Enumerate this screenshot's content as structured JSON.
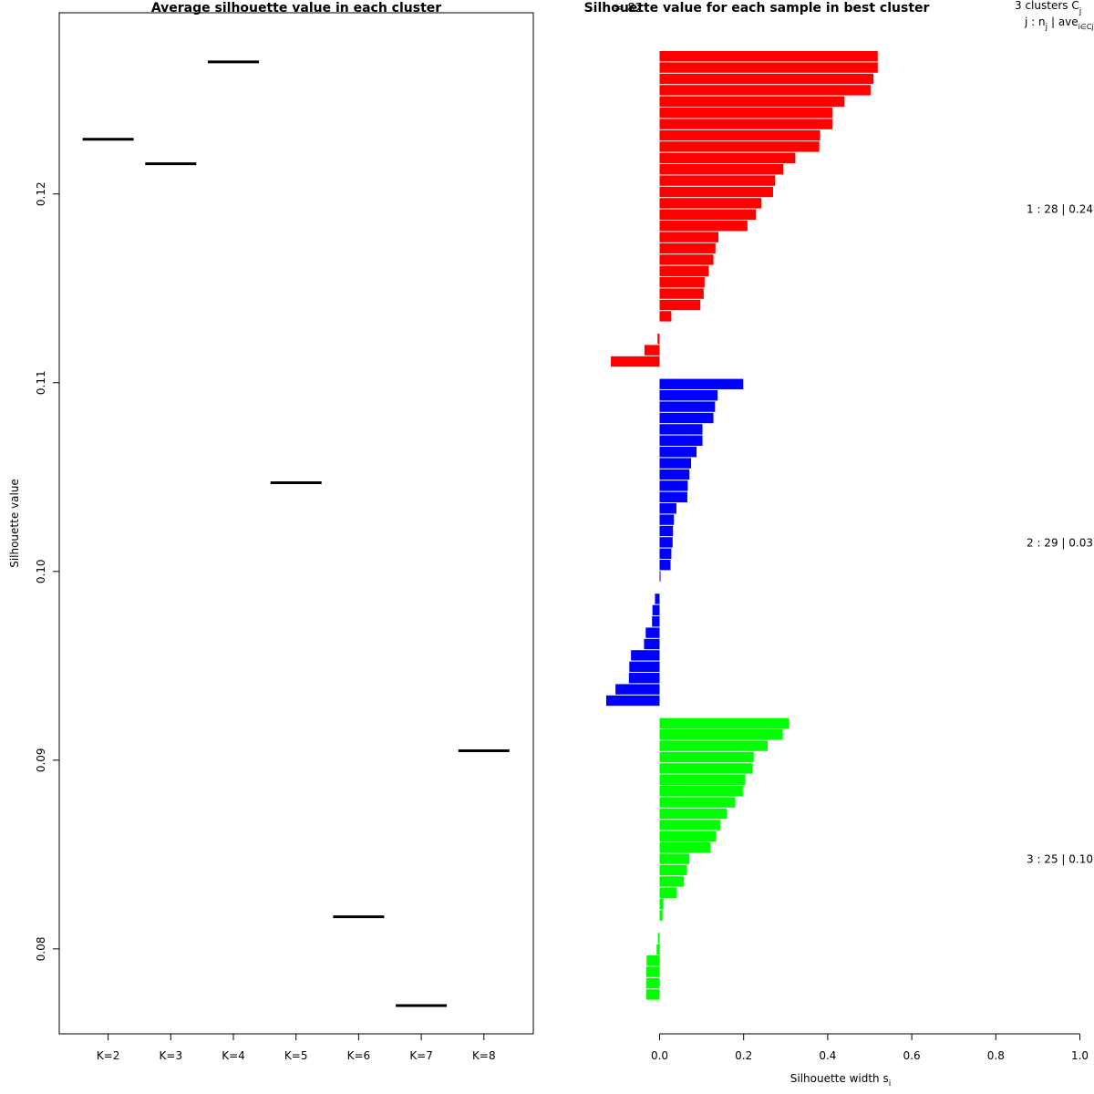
{
  "chart_data": [
    {
      "type": "line",
      "title": "Average silhouette value in each cluster",
      "xlabel": "",
      "ylabel": "Silhouette value",
      "categories": [
        "K=2",
        "K=3",
        "K=4",
        "K=5",
        "K=6",
        "K=7",
        "K=8"
      ],
      "values": [
        0.1229,
        0.1216,
        0.127,
        0.1047,
        0.0817,
        0.077,
        0.0905
      ],
      "ylim": [
        0.0755,
        0.1296
      ],
      "yticks": [
        "0.08",
        "0.09",
        "0.10",
        "0.11",
        "0.12"
      ]
    },
    {
      "type": "bar",
      "title": "Silhouette value for each sample in best cluster",
      "title_overlap": "n = 82",
      "xlabel": "Silhouette width s",
      "xlabel_sub": "i",
      "xlim": [
        0,
        1
      ],
      "xticks": [
        "0.0",
        "0.2",
        "0.4",
        "0.6",
        "0.8",
        "1.0"
      ],
      "header_line1": "3  clusters  C",
      "header_line1_sub": "j",
      "header_line2": "j :  n",
      "header_line2_sub": "j",
      "header_line2_rest": " | ave",
      "header_line2_sub2": "i∈Cj",
      "header_line2_end": "  s",
      "clusters": [
        {
          "name": "1",
          "color": "#ff0000",
          "label": "1 :  28  |  0.24",
          "values": [
            0.519,
            0.519,
            0.509,
            0.502,
            0.44,
            0.411,
            0.411,
            0.382,
            0.38,
            0.323,
            0.294,
            0.275,
            0.27,
            0.242,
            0.229,
            0.209,
            0.14,
            0.133,
            0.128,
            0.117,
            0.107,
            0.105,
            0.097,
            0.028,
            0,
            -0.005,
            -0.036,
            -0.116
          ]
        },
        {
          "name": "2",
          "color": "#0000ff",
          "label": "2 :  29  |  0.03",
          "values": [
            0.199,
            0.138,
            0.132,
            0.128,
            0.102,
            0.102,
            0.088,
            0.075,
            0.071,
            0.067,
            0.066,
            0.04,
            0.034,
            0.032,
            0.031,
            0.028,
            0.026,
            0.002,
            0,
            -0.011,
            -0.017,
            -0.018,
            -0.033,
            -0.037,
            -0.068,
            -0.072,
            -0.073,
            -0.105,
            -0.127
          ]
        },
        {
          "name": "3",
          "color": "#00ff00",
          "label": "3 :  25  |  0.10",
          "values": [
            0.308,
            0.293,
            0.257,
            0.224,
            0.221,
            0.203,
            0.198,
            0.18,
            0.16,
            0.145,
            0.134,
            0.121,
            0.071,
            0.065,
            0.058,
            0.041,
            0.009,
            0.007,
            0,
            -0.004,
            -0.007,
            -0.031,
            -0.032,
            -0.032,
            -0.032
          ]
        }
      ]
    }
  ]
}
